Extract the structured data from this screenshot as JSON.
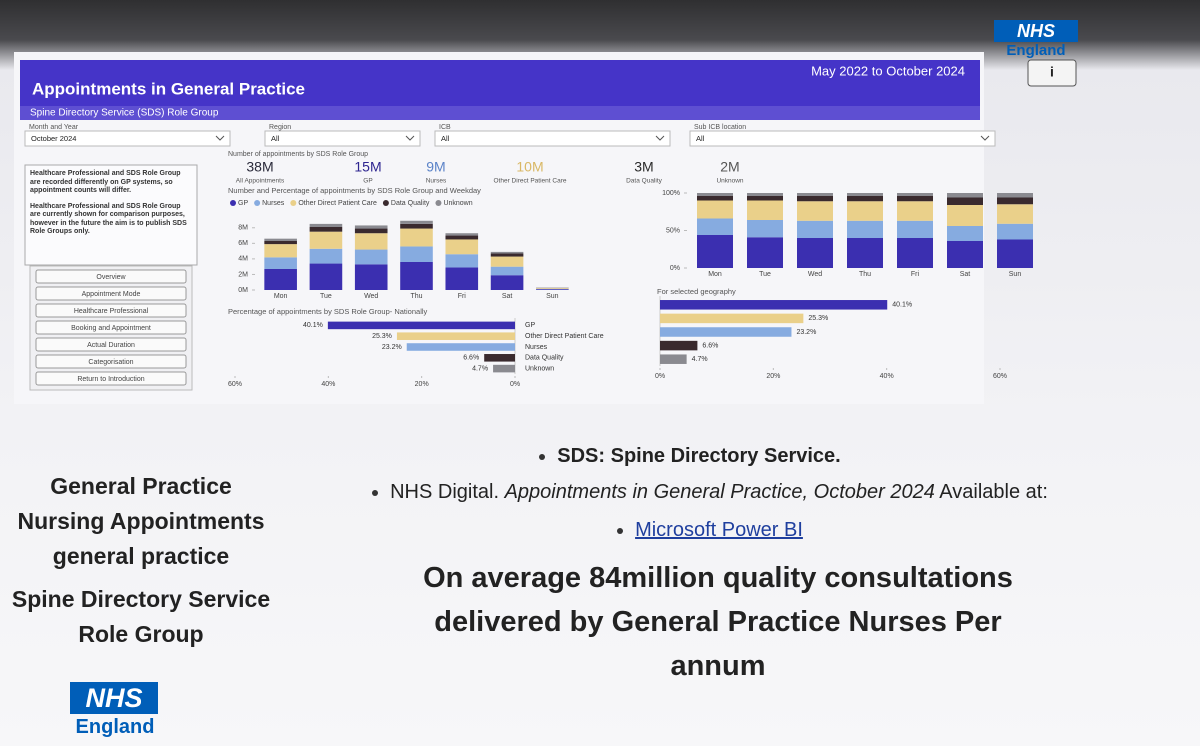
{
  "header": {
    "title": "Appointments in General Practice",
    "subtitle": "Spine Directory Service (SDS) Role Group",
    "date_range": "May 2022 to October 2024",
    "info": "i",
    "logo": {
      "line1": "NHS",
      "line2": "England"
    }
  },
  "filters": [
    {
      "label": "Month and Year",
      "value": "October 2024"
    },
    {
      "label": "Region",
      "value": "All"
    },
    {
      "label": "ICB",
      "value": "All"
    },
    {
      "label": "Sub ICB location",
      "value": "All"
    }
  ],
  "note": [
    "Healthcare Professional and SDS Role Group are recorded differently on GP systems, so appointment counts will differ.",
    "Healthcare Professional and SDS Role Group are currently shown for comparison purposes, however in the future the aim is to publish SDS Role Groups only."
  ],
  "nav": [
    "Overview",
    "Appointment Mode",
    "Healthcare Professional",
    "Booking and Appointment",
    "Actual Duration",
    "Categorisation",
    "Return to Introduction"
  ],
  "kpi_title": "Number of appointments by SDS Role Group",
  "kpis": [
    {
      "value": "38M",
      "label": "All Appointments",
      "color": "#2a2a3a"
    },
    {
      "value": "15M",
      "label": "GP",
      "color": "#2e2590"
    },
    {
      "value": "9M",
      "label": "Nurses",
      "color": "#5b83c8"
    },
    {
      "value": "10M",
      "label": "Other Direct Patient Care",
      "color": "#d9b866"
    },
    {
      "value": "3M",
      "label": "Data Quality",
      "color": "#2a2a2a"
    },
    {
      "value": "2M",
      "label": "Unknown",
      "color": "#555555"
    }
  ],
  "chart_data": [
    {
      "type": "bar",
      "stacked": true,
      "legend": "top",
      "title": "Number and Percentage of appointments by SDS Role Group and Weekday",
      "categories": [
        "Mon",
        "Tue",
        "Wed",
        "Thu",
        "Fri",
        "Sat",
        "Sun"
      ],
      "series": [
        {
          "name": "GP",
          "color": "#3b2fb0",
          "values": [
            2.7,
            3.4,
            3.3,
            3.6,
            2.9,
            1.9,
            0.1
          ]
        },
        {
          "name": "Nurses",
          "color": "#86abe0",
          "values": [
            1.5,
            1.9,
            1.9,
            2.0,
            1.7,
            1.1,
            0.05
          ]
        },
        {
          "name": "Other Direct Patient Care",
          "color": "#ead08a",
          "values": [
            1.7,
            2.2,
            2.1,
            2.3,
            1.9,
            1.3,
            0.1
          ]
        },
        {
          "name": "Data Quality",
          "color": "#3a2a2e",
          "values": [
            0.4,
            0.6,
            0.6,
            0.6,
            0.5,
            0.4,
            0.03
          ]
        },
        {
          "name": "Unknown",
          "color": "#8a8a90",
          "values": [
            0.3,
            0.4,
            0.4,
            0.4,
            0.3,
            0.2,
            0.02
          ]
        }
      ],
      "ylim": [
        0,
        9
      ],
      "yticks": [
        {
          "value": 0,
          "label": "0M"
        },
        {
          "value": 2,
          "label": "2M"
        },
        {
          "value": 4,
          "label": "4M"
        },
        {
          "value": 6,
          "label": "6M"
        },
        {
          "value": 8,
          "label": "8M"
        }
      ]
    },
    {
      "type": "bar",
      "stacked": true,
      "categories": [
        "Mon",
        "Tue",
        "Wed",
        "Thu",
        "Fri",
        "Sat",
        "Sun"
      ],
      "series": [
        {
          "color": "#3b2fb0",
          "values": [
            44,
            41,
            40,
            40,
            40,
            36,
            38
          ]
        },
        {
          "color": "#86abe0",
          "values": [
            22,
            23,
            23,
            23,
            23,
            20,
            21
          ]
        },
        {
          "color": "#ead08a",
          "values": [
            24,
            26,
            26,
            26,
            26,
            28,
            26
          ]
        },
        {
          "color": "#3a2a2e",
          "values": [
            6,
            6,
            7,
            7,
            7,
            10,
            9
          ]
        },
        {
          "color": "#8a8a90",
          "values": [
            4,
            4,
            4,
            4,
            4,
            6,
            6
          ]
        }
      ],
      "ylim": [
        0,
        100
      ],
      "yticks": [
        {
          "value": 0,
          "label": "0%"
        },
        {
          "value": 50,
          "label": "50%"
        },
        {
          "value": 100,
          "label": "100%"
        }
      ]
    },
    {
      "type": "hbar",
      "title": "Percentage of appointments by SDS Role Group- Nationally",
      "categories": [
        "GP",
        "Other Direct Patient Care",
        "Nurses",
        "Data Quality",
        "Unknown"
      ],
      "values": [
        40.1,
        25.3,
        23.2,
        6.6,
        4.7
      ],
      "value_labels": [
        "40.1%",
        "25.3%",
        "23.2%",
        "6.6%",
        "4.7%"
      ],
      "colors": [
        "#3b2fb0",
        "#ead08a",
        "#86abe0",
        "#3a2a2e",
        "#8a8a90"
      ],
      "xlim": [
        60,
        0
      ],
      "xticks": [
        {
          "value": 60,
          "label": "60%"
        },
        {
          "value": 40,
          "label": "40%"
        },
        {
          "value": 20,
          "label": "20%"
        },
        {
          "value": 0,
          "label": "0%"
        }
      ]
    },
    {
      "type": "hbar",
      "title": "For selected geography",
      "values": [
        40.1,
        25.3,
        23.2,
        6.6,
        4.7
      ],
      "value_labels": [
        "40.1%",
        "25.3%",
        "23.2%",
        "6.6%",
        "4.7%"
      ],
      "colors": [
        "#3b2fb0",
        "#ead08a",
        "#86abe0",
        "#3a2a2e",
        "#8a8a90"
      ],
      "xlim": [
        0,
        60
      ],
      "xticks": [
        {
          "value": 0,
          "label": "0%"
        },
        {
          "value": 20,
          "label": "20%"
        },
        {
          "value": 40,
          "label": "40%"
        },
        {
          "value": 60,
          "label": "60%"
        }
      ]
    }
  ],
  "references": {
    "definition": "SDS: Spine Directory Service.",
    "source": {
      "text1": "NHS Digital. ",
      "title": "Appointments in General Practice, October 2024",
      "text2": " Available at:"
    },
    "link": "Microsoft Power BI"
  },
  "headline": [
    "On average 84million quality consultations",
    "delivered by General Practice Nurses Per",
    "annum"
  ],
  "left_text": [
    "General Practice",
    "Nursing  Appointments",
    "general practice",
    "Spine Directory Service",
    "Role Group"
  ],
  "footer_logo": {
    "line1": "NHS",
    "line2": "England"
  }
}
